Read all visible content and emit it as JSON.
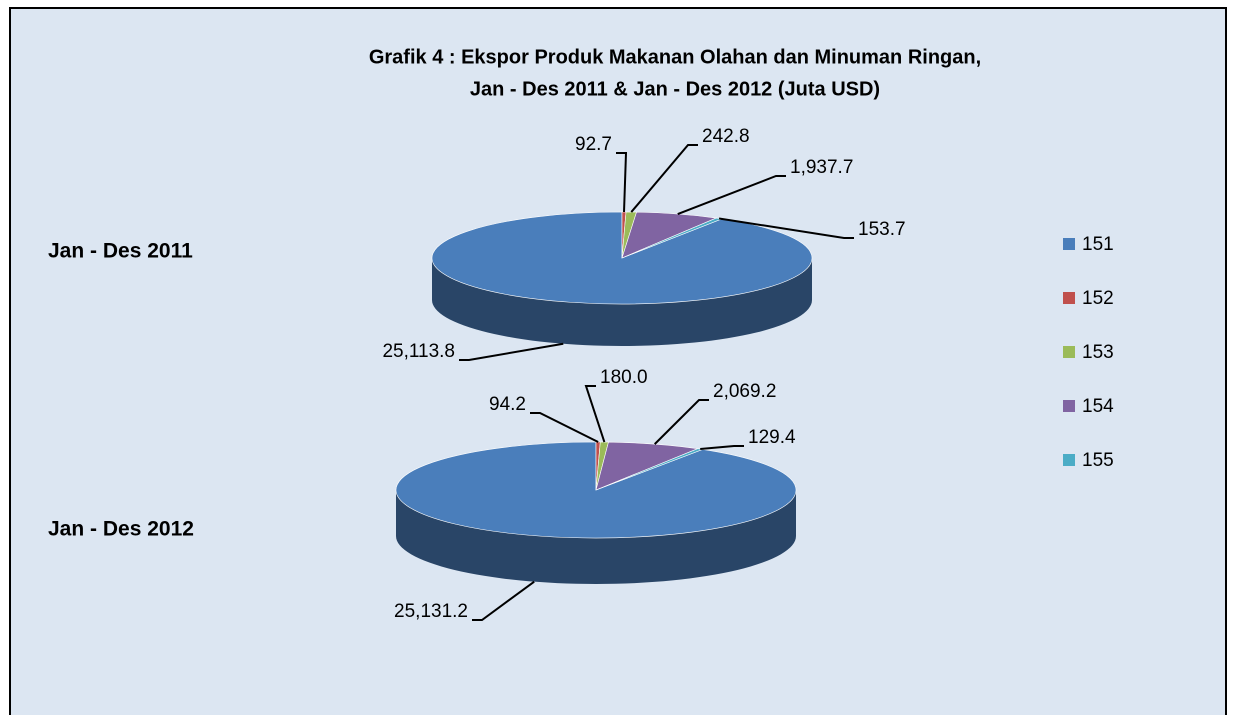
{
  "chart_data": {
    "type": "pie",
    "title": [
      "Grafik 4 : Ekspor Produk Makanan Olahan dan Minuman Ringan,",
      "Jan - Des 2011 & Jan - Des 2012 (Juta USD)"
    ],
    "categories": [
      "151",
      "152",
      "153",
      "154",
      "155"
    ],
    "colors": [
      "#4a7ebb",
      "#c0504d",
      "#9bbb59",
      "#8064a2",
      "#4bacc6"
    ],
    "series": [
      {
        "name": "Jan - Des 2011",
        "values": [
          25113.8,
          92.7,
          242.8,
          1937.7,
          153.7
        ],
        "value_labels": [
          "25,113.8",
          "92.7",
          "242.8",
          "1,937.7",
          "153.7"
        ]
      },
      {
        "name": "Jan - Des 2012",
        "values": [
          25131.2,
          94.2,
          180.0,
          2069.2,
          129.4
        ],
        "value_labels": [
          "25,131.2",
          "94.2",
          "180.0",
          "2,069.2",
          "129.4"
        ]
      }
    ],
    "legend": "right"
  }
}
